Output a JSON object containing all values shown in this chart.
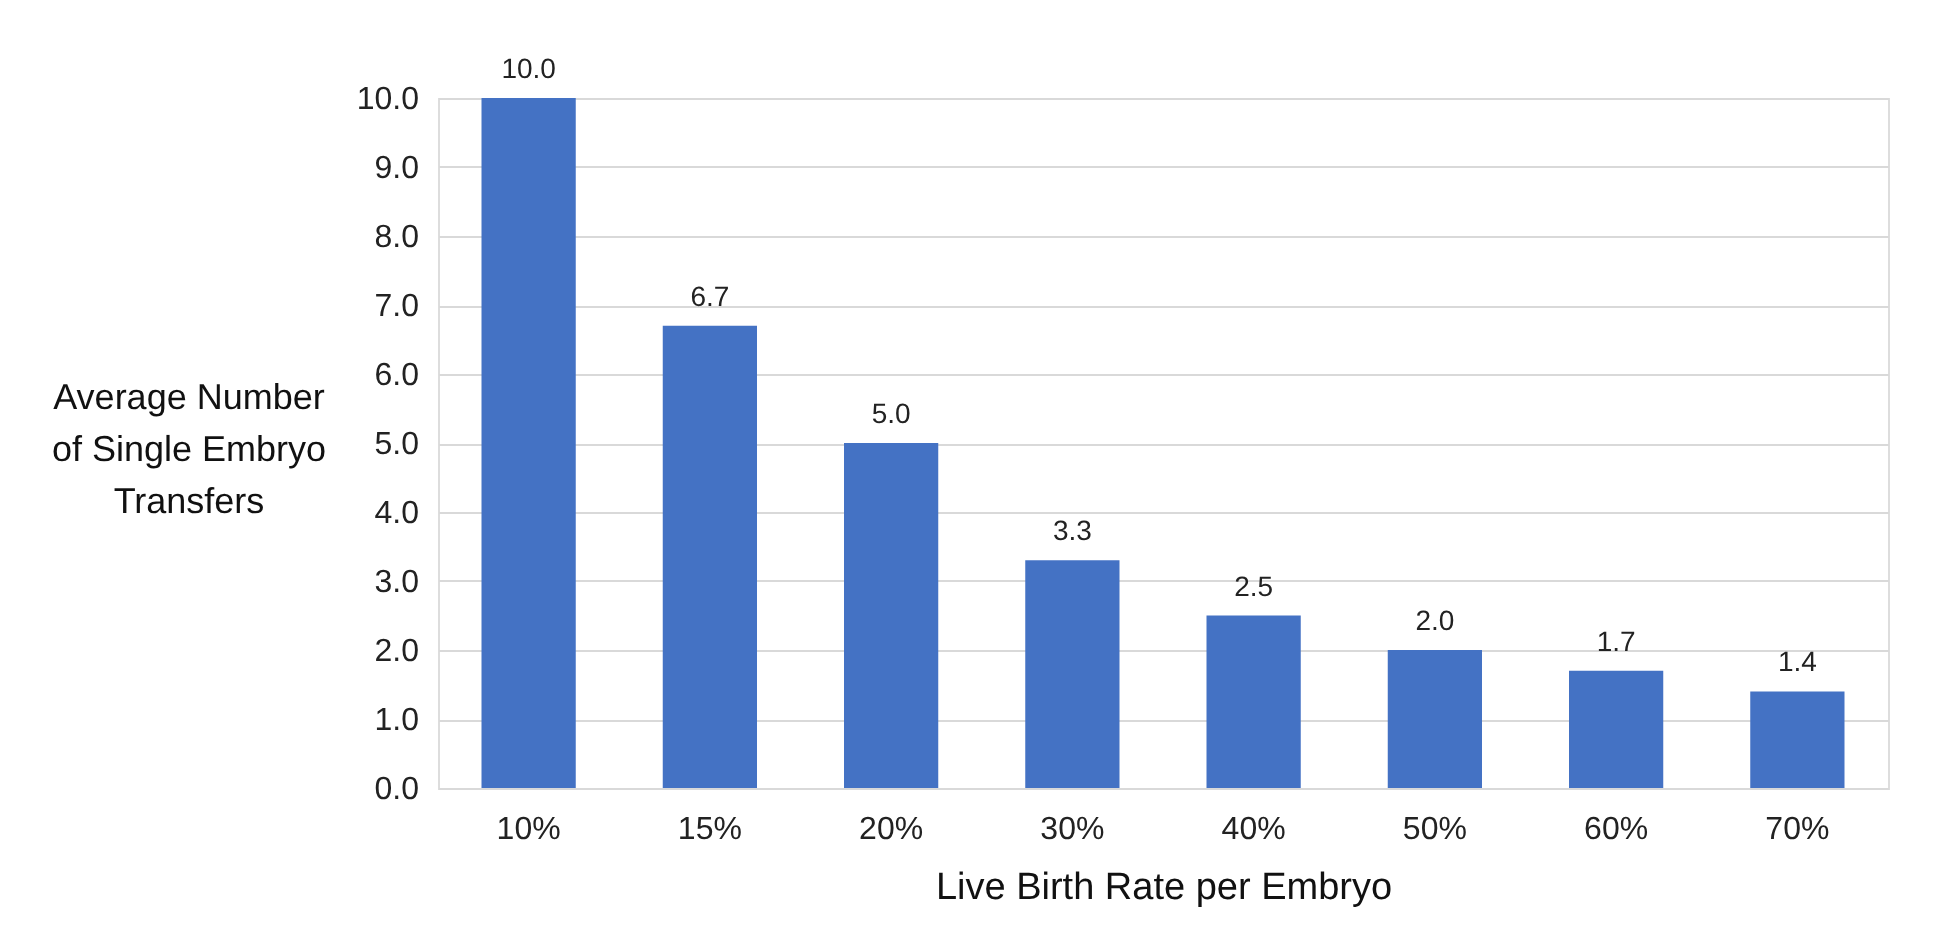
{
  "chart_data": {
    "type": "bar",
    "xlabel": "Live Birth Rate per Embryo",
    "ylabel": "Average Number of Single Embryo Transfers",
    "categories": [
      "10%",
      "15%",
      "20%",
      "30%",
      "40%",
      "50%",
      "60%",
      "70%"
    ],
    "values": [
      10.0,
      6.7,
      5.0,
      3.3,
      2.5,
      2.0,
      1.7,
      1.4
    ],
    "value_labels": [
      "10.0",
      "6.7",
      "5.0",
      "3.3",
      "2.5",
      "2.0",
      "1.7",
      "1.4"
    ],
    "color": "#4472c4",
    "ylim": [
      0,
      10
    ],
    "yticks": [
      {
        "value": 0,
        "label": "0.0"
      },
      {
        "value": 1,
        "label": "1.0"
      },
      {
        "value": 2,
        "label": "2.0"
      },
      {
        "value": 3,
        "label": "3.0"
      },
      {
        "value": 4,
        "label": "4.0"
      },
      {
        "value": 5,
        "label": "5.0"
      },
      {
        "value": 6,
        "label": "6.0"
      },
      {
        "value": 7,
        "label": "7.0"
      },
      {
        "value": 8,
        "label": "8.0"
      },
      {
        "value": 9,
        "label": "9.0"
      },
      {
        "value": 10,
        "label": "10.0"
      }
    ],
    "grid": "y"
  }
}
